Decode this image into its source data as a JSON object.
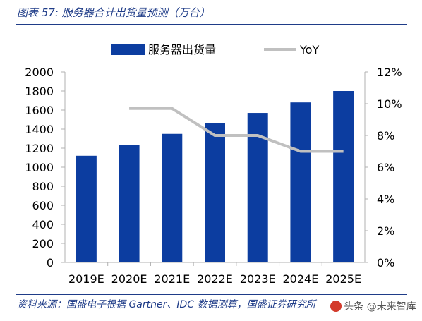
{
  "figure_title": "图表 57: 服务器合计出货量预测（万台）",
  "source_note": "资料来源：国盛电子根据 Gartner、IDC 数据测算，国盛证券研究所",
  "watermark": "头条 @未来智库",
  "colors": {
    "bar": "#0c3da0",
    "line": "#c0c0c0",
    "title": "#1f3c88",
    "axis": "#b0b0b0",
    "text": "#000000"
  },
  "chart_data": {
    "type": "bar",
    "categories": [
      "2019E",
      "2020E",
      "2021E",
      "2022E",
      "2023E",
      "2024E",
      "2025E"
    ],
    "series": [
      {
        "name": "服务器出货量",
        "type": "bar",
        "axis": "left",
        "values": [
          1120,
          1230,
          1350,
          1460,
          1570,
          1680,
          1800
        ]
      },
      {
        "name": "YoY",
        "type": "line",
        "axis": "right",
        "values": [
          null,
          9.7,
          9.7,
          8.0,
          8.0,
          7.0,
          7.0
        ]
      }
    ],
    "ylim_left": [
      0,
      2000
    ],
    "yticks_left": [
      "0",
      "200",
      "400",
      "600",
      "800",
      "1000",
      "1200",
      "1400",
      "1600",
      "1800",
      "2000"
    ],
    "ylim_right": [
      0,
      12
    ],
    "yticks_right": [
      "0%",
      "2%",
      "4%",
      "6%",
      "8%",
      "10%",
      "12%"
    ],
    "legend_position": "top",
    "grid": false
  }
}
